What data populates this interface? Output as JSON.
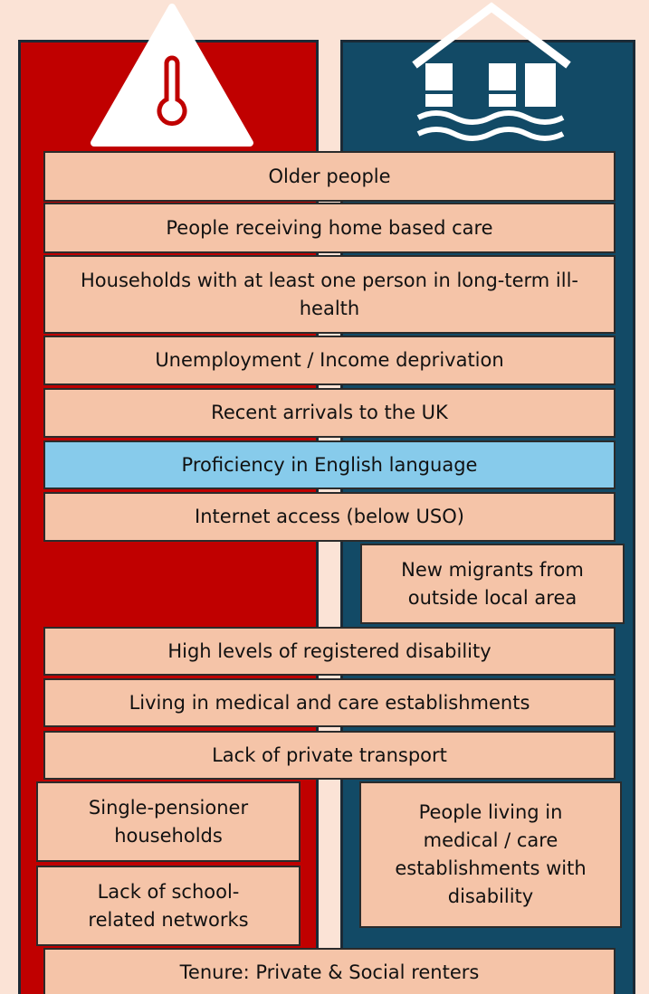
{
  "items": [
    "Older people",
    "People receiving home based care",
    "Households with at least one person in long-term ill-health",
    "Unemployment / Income deprivation",
    "Recent arrivals to the UK",
    "Proficiency in English language",
    "Internet access (below USO)",
    "New migrants from outside local area",
    "High levels of registered disability",
    "Living in medical and care establishments",
    "Lack of private transport",
    "Single-pensioner households",
    "Lack of school-related networks",
    "People living in medical / care establishments with disability",
    "Tenure: Private & Social renters"
  ]
}
